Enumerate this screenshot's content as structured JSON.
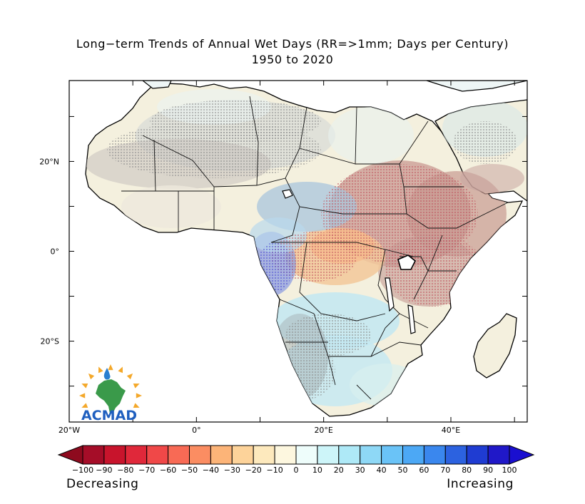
{
  "title": {
    "line1": "Long−term Trends of Annual Wet Days (RR=>1mm; Days per Century)",
    "line2": "1950 to 2020"
  },
  "axes": {
    "x_ticks": [
      {
        "value": -20,
        "label": "20°W"
      },
      {
        "value": 0,
        "label": "0°"
      },
      {
        "value": 20,
        "label": "20°E"
      },
      {
        "value": 40,
        "label": "40°E"
      }
    ],
    "y_ticks": [
      {
        "value": 20,
        "label": "20°N"
      },
      {
        "value": 0,
        "label": "0°"
      },
      {
        "value": -20,
        "label": "20°S"
      }
    ],
    "lon_range": [
      -20,
      52
    ],
    "lat_range": [
      -38,
      38
    ]
  },
  "colorbar": {
    "levels": [
      "−100",
      "−90",
      "−80",
      "−70",
      "−60",
      "−50",
      "−40",
      "−30",
      "−20",
      "−10",
      "0",
      "10",
      "20",
      "30",
      "40",
      "50",
      "60",
      "70",
      "80",
      "90",
      "100"
    ],
    "colors": [
      "#a50d28",
      "#c8142c",
      "#e0283a",
      "#f04848",
      "#f86a55",
      "#fb8d62",
      "#fcb478",
      "#fdd39a",
      "#fde9bd",
      "#fdf7df",
      "#eefdfb",
      "#cdf5f9",
      "#aee9f7",
      "#8ed8f6",
      "#6ac3f7",
      "#4ca8f5",
      "#3a87ee",
      "#2c62e0",
      "#1f3cd2",
      "#2018c8"
    ],
    "low_color": "#8e0a1e",
    "high_color": "#1a0fd0",
    "left_label": "Decreasing",
    "right_label": "Increasing"
  },
  "logo": {
    "text": "ACMAD",
    "colors": {
      "sun": "#f4a82a",
      "drop": "#2a7fd0",
      "land": "#3a9a4a",
      "text": "#1f5fbf"
    }
  },
  "map_colors": {
    "background": "#ffffff",
    "ocean": "#ffffff",
    "land_neutral": "#f5f2e4",
    "stipple": "#9a9a9a",
    "border": "#000000"
  }
}
